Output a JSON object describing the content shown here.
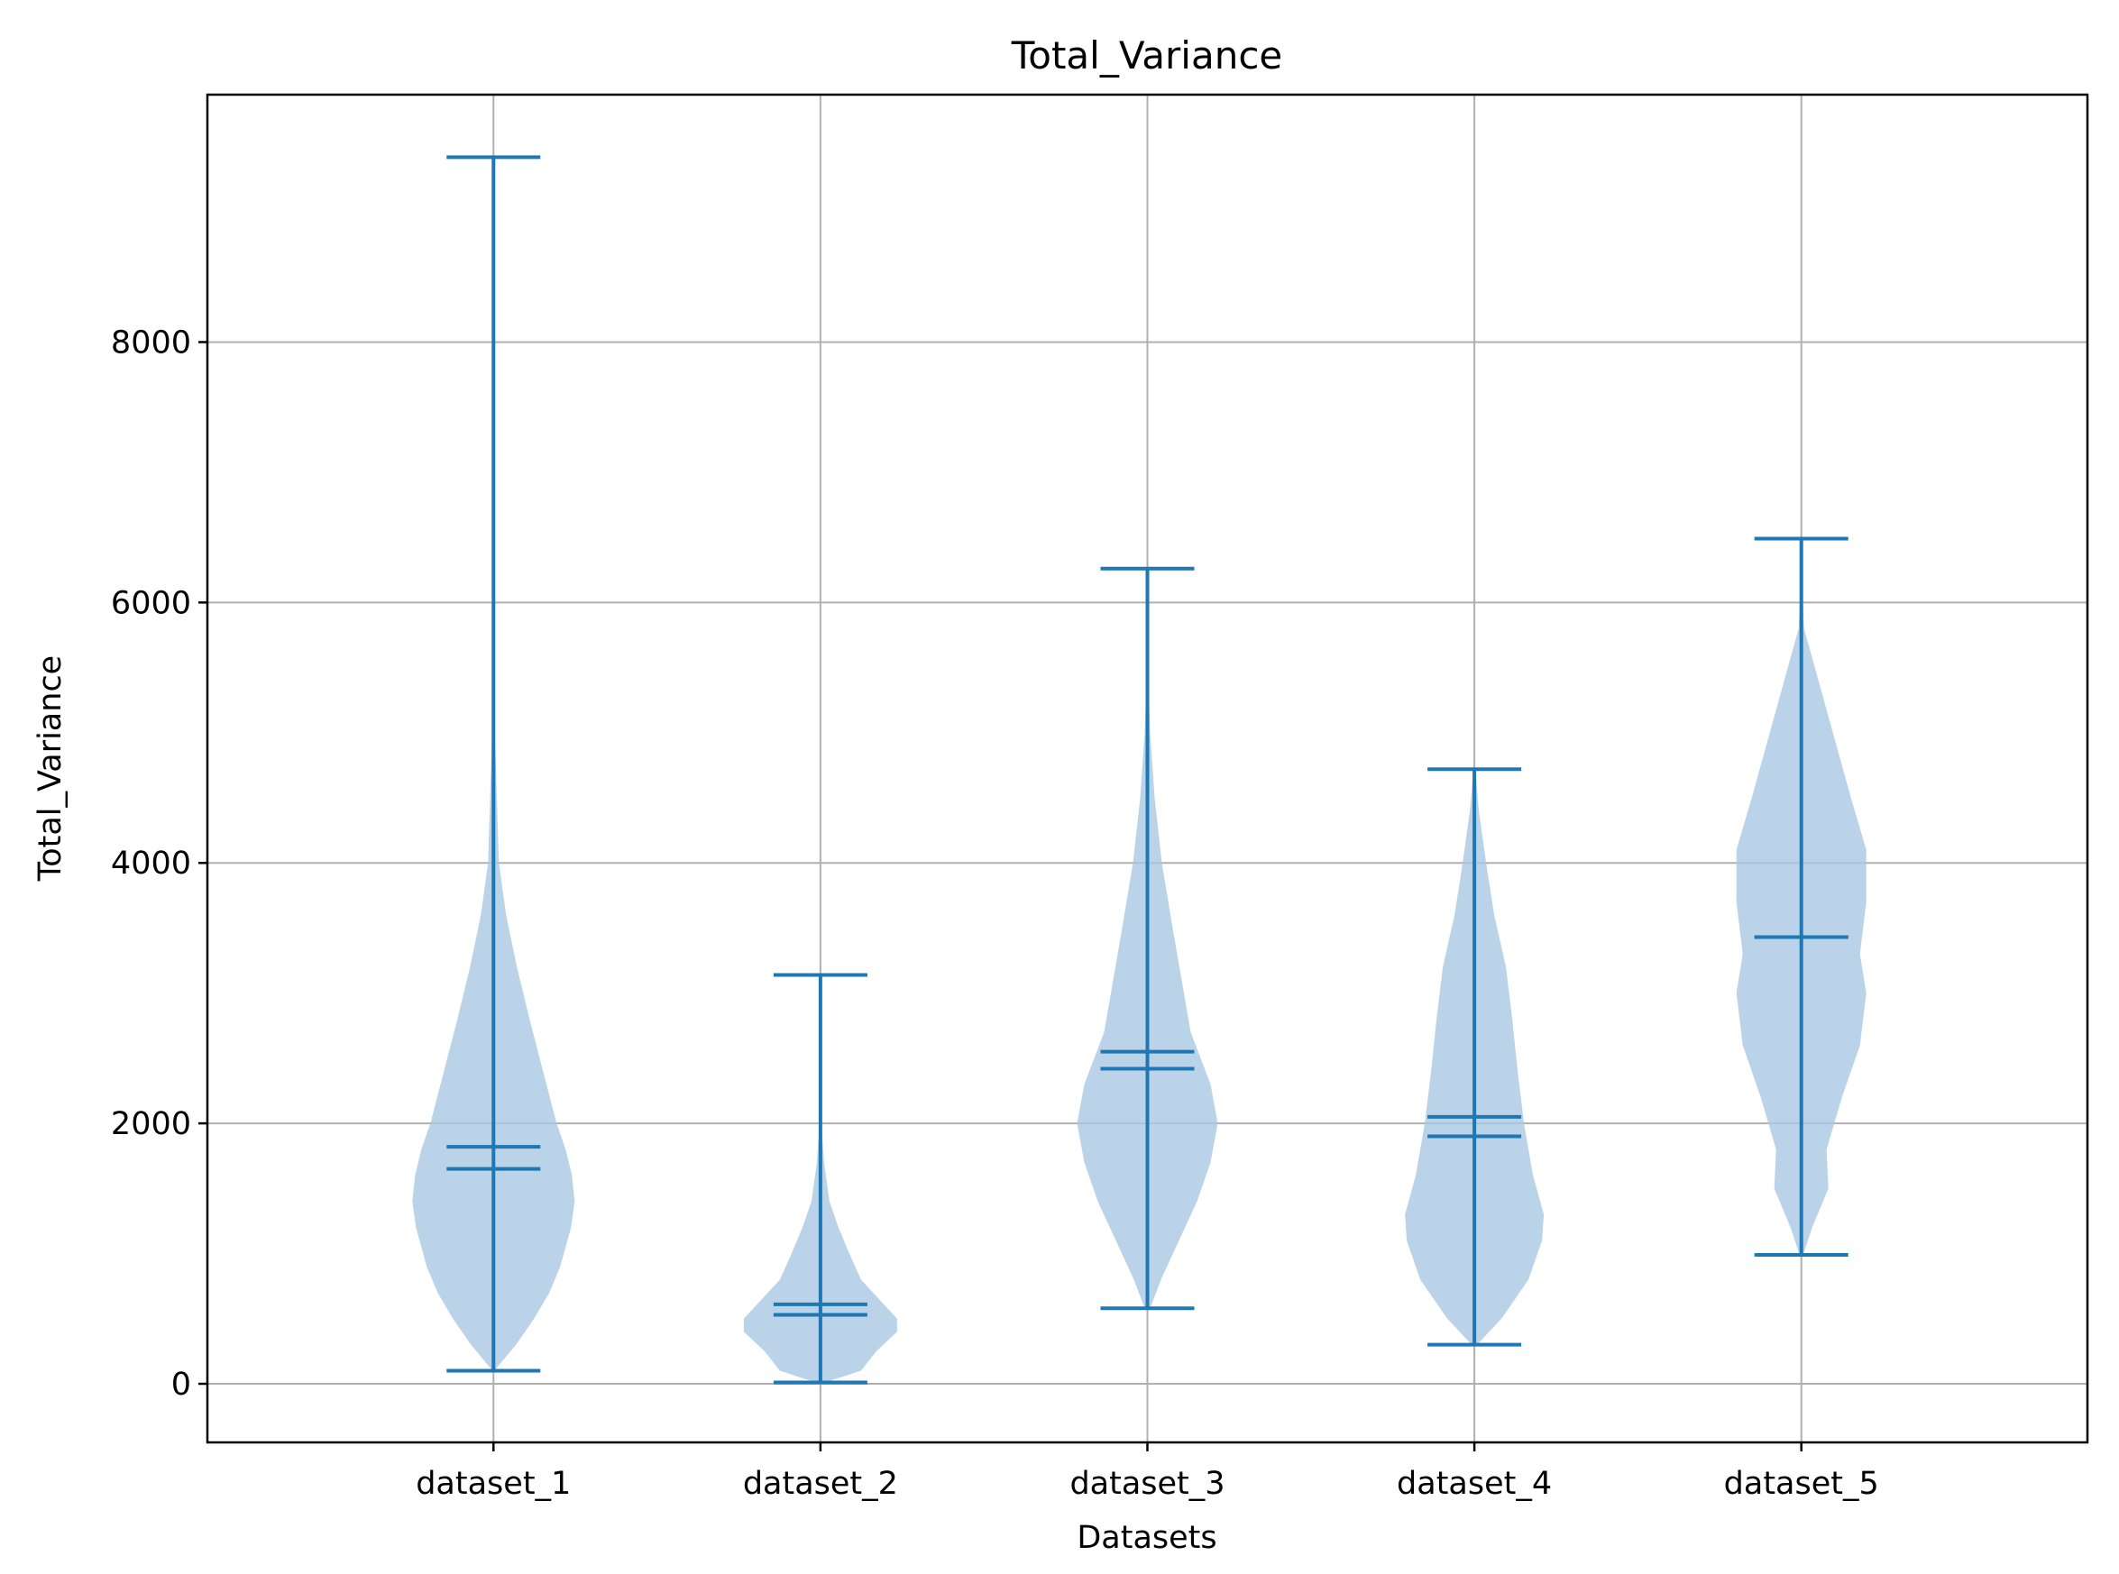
{
  "chart_data": {
    "type": "violin",
    "title": "Total_Variance",
    "xlabel": "Datasets",
    "ylabel": "Total_Variance",
    "ylim": [
      -450,
      9900
    ],
    "yticks": [
      0,
      2000,
      4000,
      6000,
      8000
    ],
    "categories": [
      "dataset_1",
      "dataset_2",
      "dataset_3",
      "dataset_4",
      "dataset_5"
    ],
    "grid": true,
    "colors": {
      "body": "#a9c8e2",
      "body_opacity": "0.8",
      "lines": "#1f77b4"
    },
    "violins": [
      {
        "name": "dataset_1",
        "min": 100,
        "max": 9420,
        "median": 1650,
        "mean": 1820,
        "profile": [
          [
            100,
            0.01
          ],
          [
            300,
            0.25
          ],
          [
            500,
            0.45
          ],
          [
            700,
            0.62
          ],
          [
            900,
            0.74
          ],
          [
            1200,
            0.86
          ],
          [
            1400,
            0.9
          ],
          [
            1600,
            0.87
          ],
          [
            1800,
            0.8
          ],
          [
            2000,
            0.7
          ],
          [
            2400,
            0.55
          ],
          [
            2800,
            0.4
          ],
          [
            3200,
            0.26
          ],
          [
            3600,
            0.14
          ],
          [
            4000,
            0.06
          ],
          [
            5000,
            0.015
          ],
          [
            6000,
            0.004
          ],
          [
            7500,
            0.002
          ],
          [
            9420,
            0.001
          ]
        ]
      },
      {
        "name": "dataset_2",
        "min": 10,
        "max": 3140,
        "median": 530,
        "mean": 610,
        "profile": [
          [
            10,
            0.05
          ],
          [
            100,
            0.45
          ],
          [
            250,
            0.62
          ],
          [
            400,
            0.85
          ],
          [
            500,
            0.85
          ],
          [
            650,
            0.65
          ],
          [
            800,
            0.45
          ],
          [
            1000,
            0.32
          ],
          [
            1200,
            0.2
          ],
          [
            1400,
            0.1
          ],
          [
            1700,
            0.04
          ],
          [
            2000,
            0.01
          ],
          [
            2500,
            0.003
          ],
          [
            3140,
            0.001
          ]
        ]
      },
      {
        "name": "dataset_3",
        "min": 580,
        "max": 6260,
        "median": 2420,
        "mean": 2550,
        "profile": [
          [
            580,
            0.03
          ],
          [
            800,
            0.15
          ],
          [
            1100,
            0.35
          ],
          [
            1400,
            0.55
          ],
          [
            1700,
            0.7
          ],
          [
            2000,
            0.78
          ],
          [
            2300,
            0.7
          ],
          [
            2700,
            0.48
          ],
          [
            3100,
            0.38
          ],
          [
            3500,
            0.28
          ],
          [
            4000,
            0.16
          ],
          [
            4500,
            0.08
          ],
          [
            5000,
            0.03
          ],
          [
            5500,
            0.006
          ],
          [
            6260,
            0.001
          ]
        ]
      },
      {
        "name": "dataset_4",
        "min": 300,
        "max": 4720,
        "median": 1900,
        "mean": 2050,
        "profile": [
          [
            300,
            0.03
          ],
          [
            500,
            0.3
          ],
          [
            800,
            0.6
          ],
          [
            1100,
            0.75
          ],
          [
            1300,
            0.77
          ],
          [
            1600,
            0.65
          ],
          [
            2000,
            0.55
          ],
          [
            2400,
            0.48
          ],
          [
            2800,
            0.42
          ],
          [
            3200,
            0.35
          ],
          [
            3600,
            0.22
          ],
          [
            4000,
            0.13
          ],
          [
            4400,
            0.05
          ],
          [
            4720,
            0.01
          ]
        ]
      },
      {
        "name": "dataset_5",
        "min": 990,
        "max": 6490,
        "median": 3430,
        "mean": 3430,
        "profile": [
          [
            990,
            0.02
          ],
          [
            1200,
            0.12
          ],
          [
            1500,
            0.3
          ],
          [
            1800,
            0.28
          ],
          [
            2200,
            0.45
          ],
          [
            2600,
            0.65
          ],
          [
            3000,
            0.72
          ],
          [
            3300,
            0.65
          ],
          [
            3700,
            0.72
          ],
          [
            4100,
            0.72
          ],
          [
            4500,
            0.55
          ],
          [
            5000,
            0.35
          ],
          [
            5500,
            0.15
          ],
          [
            5800,
            0.03
          ],
          [
            6100,
            0.01
          ],
          [
            6490,
            0.001
          ]
        ]
      }
    ]
  }
}
